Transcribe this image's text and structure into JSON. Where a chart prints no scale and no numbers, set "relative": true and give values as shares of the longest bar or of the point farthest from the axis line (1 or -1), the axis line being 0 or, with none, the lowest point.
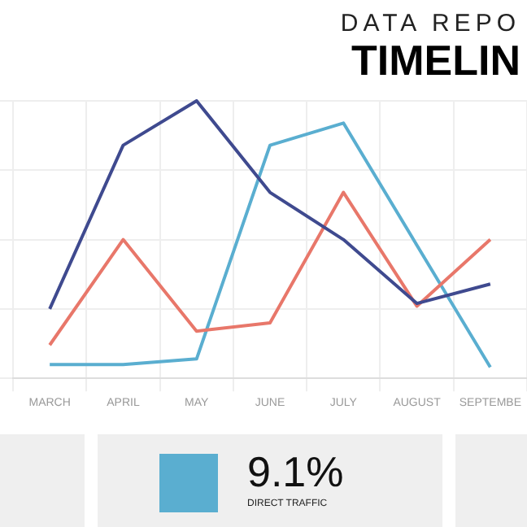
{
  "chart_data": {
    "type": "line",
    "title": "DATA REPO",
    "subtitle": "TIMELIN",
    "relative": true,
    "grid": true,
    "legend": false,
    "marker": "none",
    "line_style": "solid",
    "categories": [
      "MARCH",
      "APRIL",
      "MAY",
      "JUNE",
      "JULY",
      "AUGUST",
      "SEPTEMBE"
    ],
    "series": [
      {
        "color": "#3f4a8f",
        "values": [
          0.25,
          0.84,
          1,
          0.67,
          0.5,
          0.27,
          0.34
        ]
      },
      {
        "color": "#e8776a",
        "values": [
          0.12,
          0.5,
          0.17,
          0.2,
          0.67,
          0.26,
          0.5
        ]
      },
      {
        "color": "#5aaed0",
        "values": [
          0.05,
          0.05,
          0.07,
          0.84,
          0.92,
          0.48,
          0.04
        ]
      }
    ],
    "annotations": [
      "9.1%",
      "DIRECT TRAFFIC"
    ]
  }
}
